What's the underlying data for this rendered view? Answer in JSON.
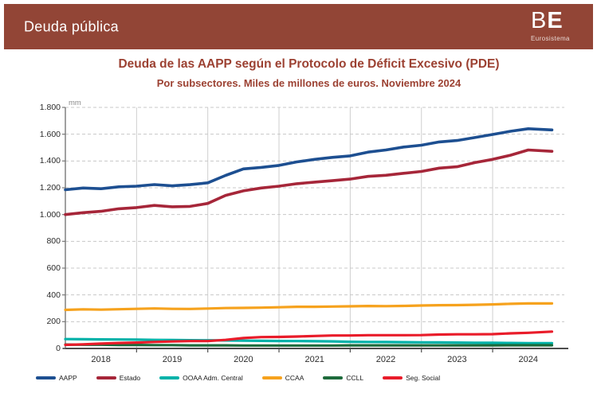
{
  "header": {
    "title": "Deuda pública",
    "bg_color": "#924536",
    "logo": {
      "b": "B",
      "e": "E",
      "subtitle": "Eurosistema"
    }
  },
  "title": "Deuda de las AAPP según el Protocolo de Déficit Excesivo (PDE)",
  "subtitle": "Por subsectores. Miles de millones de euros. Noviembre 2024",
  "title_color": "#9c4132",
  "chart_data": {
    "type": "line",
    "title": "Deuda de las AAPP según el Protocolo de Déficit Excesivo (PDE)",
    "subtitle": "Por subsectores. Miles de millones de euros. Noviembre 2024",
    "unit_label": "mm",
    "ylim": [
      0,
      1800
    ],
    "xlim": [
      2018,
      2024.917
    ],
    "y_tick_values": [
      0,
      200,
      400,
      600,
      800,
      1000,
      1200,
      1400,
      1600,
      1800
    ],
    "y_tick_labels": [
      "0",
      "200",
      "400",
      "600",
      "800",
      "1.000",
      "1.200",
      "1.400",
      "1.600",
      "1.800"
    ],
    "x_tick_labels": [
      "2018",
      "2019",
      "2020",
      "2021",
      "2022",
      "2023",
      "2024"
    ],
    "grid": "horizontal dashed every 200, vertical solid at each year",
    "legend_position": "bottom",
    "x": [
      2018.0,
      2018.25,
      2018.5,
      2018.75,
      2019.0,
      2019.25,
      2019.5,
      2019.75,
      2020.0,
      2020.25,
      2020.5,
      2020.75,
      2021.0,
      2021.25,
      2021.5,
      2021.75,
      2022.0,
      2022.25,
      2022.5,
      2022.75,
      2023.0,
      2023.25,
      2023.5,
      2023.75,
      2024.0,
      2024.25,
      2024.5,
      2024.833
    ],
    "series": [
      {
        "name": "AAPP",
        "color": "#1d4f91",
        "values": [
          1185,
          1198,
          1193,
          1207,
          1212,
          1224,
          1214,
          1223,
          1237,
          1292,
          1341,
          1352,
          1367,
          1393,
          1412,
          1427,
          1438,
          1466,
          1482,
          1504,
          1518,
          1542,
          1553,
          1575,
          1598,
          1622,
          1641,
          1632
        ]
      },
      {
        "name": "Estado",
        "color": "#a62639",
        "values": [
          1000,
          1014,
          1024,
          1043,
          1052,
          1068,
          1058,
          1061,
          1083,
          1143,
          1177,
          1198,
          1212,
          1230,
          1242,
          1253,
          1265,
          1285,
          1293,
          1308,
          1322,
          1347,
          1357,
          1388,
          1412,
          1443,
          1482,
          1472
        ]
      },
      {
        "name": "OOAA Adm. Central",
        "color": "#00b2a9",
        "values": [
          70,
          69,
          68,
          67,
          66,
          64,
          63,
          62,
          61,
          60,
          58,
          57,
          56,
          55,
          54,
          53,
          50,
          49,
          48,
          47,
          46,
          45,
          44,
          43,
          42,
          41,
          40,
          39
        ]
      },
      {
        "name": "CCAA",
        "color": "#f6a21d",
        "values": [
          288,
          292,
          290,
          293,
          296,
          299,
          296,
          295,
          298,
          302,
          303,
          305,
          308,
          311,
          311,
          313,
          315,
          317,
          316,
          318,
          321,
          323,
          324,
          326,
          329,
          333,
          336,
          336
        ]
      },
      {
        "name": "CCLL",
        "color": "#1e6b3c",
        "values": [
          29,
          28,
          28,
          26,
          26,
          25,
          25,
          23,
          23,
          23,
          22,
          22,
          22,
          22,
          22,
          22,
          23,
          23,
          23,
          23,
          23,
          23,
          23,
          23,
          23,
          24,
          24,
          24
        ]
      },
      {
        "name": "Seg. Social",
        "color": "#e91c2a",
        "values": [
          27,
          31,
          36,
          41,
          44,
          49,
          52,
          55,
          55,
          64,
          78,
          85,
          86,
          89,
          93,
          97,
          97,
          99,
          99,
          99,
          100,
          104,
          106,
          106,
          107,
          113,
          117,
          126
        ]
      }
    ]
  },
  "colors": {
    "grid_solid": "#cfcfcf",
    "grid_dashed": "#c8c8c8",
    "axis": "#4d4d4d",
    "tick_text": "#2b2b2b"
  }
}
